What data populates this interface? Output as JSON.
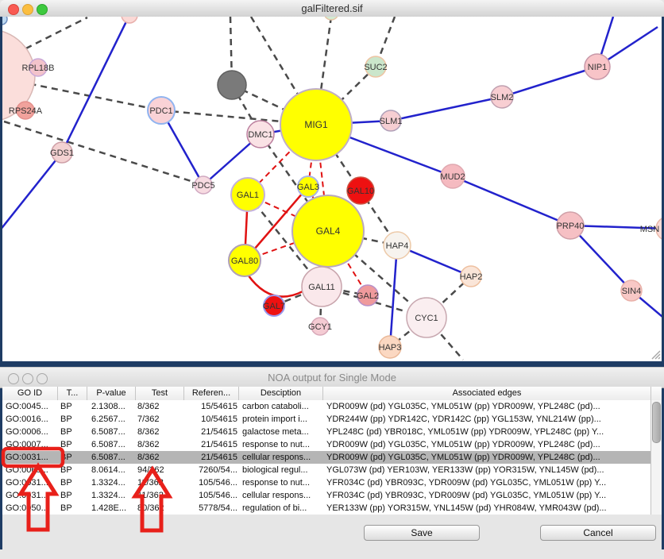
{
  "graph_window": {
    "title": "galFiltered.sif"
  },
  "graph": {
    "nodes": [
      {
        "label": "RPL18B"
      },
      {
        "label": "RPS24A"
      },
      {
        "label": "GDS1"
      },
      {
        "label": "PDC1"
      },
      {
        "label": "PDC5"
      },
      {
        "label": "MIG1"
      },
      {
        "label": "DMC1"
      },
      {
        "label": "SUC2"
      },
      {
        "label": "SLM1"
      },
      {
        "label": "SLM2"
      },
      {
        "label": "NIP1"
      },
      {
        "label": "MUD2"
      },
      {
        "label": "PRP40"
      },
      {
        "label": "SIN4"
      },
      {
        "label": "MSN"
      },
      {
        "label": "GAL1"
      },
      {
        "label": "GAL3"
      },
      {
        "label": "GAL10"
      },
      {
        "label": "GAL4"
      },
      {
        "label": "GAL80"
      },
      {
        "label": "GAL11"
      },
      {
        "label": "GAL2"
      },
      {
        "label": "GAL7"
      },
      {
        "label": "GCY1"
      },
      {
        "label": "HAP4"
      },
      {
        "label": "HAP2"
      },
      {
        "label": "HAP3"
      },
      {
        "label": "CYC1"
      }
    ],
    "colors": {
      "edge_blue": "#2222cc",
      "edge_red": "#e01212",
      "edge_dashed_gray": "#4a4a4a",
      "node_yellow": "#ffff00",
      "node_red": "#ee1111",
      "node_gray": "#7a7a7a",
      "node_green": "#cbe6cb",
      "node_pink": "#f6c8cc"
    }
  },
  "noa_window": {
    "title": "NOA output for Single Mode",
    "table": {
      "columns": [
        "GO ID",
        "T...",
        "P-value",
        "Test",
        "Referen...",
        "Desciption",
        "Associated edges"
      ],
      "selected_row_index": 4,
      "rows": [
        {
          "go_id": "GO:0045...",
          "type": "BP",
          "p_value": "2.1308...",
          "test": "8/362",
          "reference": "15/54615",
          "description": "carbon cataboli...",
          "associated_edges": "YDR009W (pd) YGL035C, YML051W (pp) YDR009W, YPL248C (pd)..."
        },
        {
          "go_id": "GO:0016...",
          "type": "BP",
          "p_value": "6.2567...",
          "test": "7/362",
          "reference": "10/54615",
          "description": "protein import i...",
          "associated_edges": "YDR244W (pp) YDR142C, YDR142C (pp) YGL153W, YNL214W (pp)..."
        },
        {
          "go_id": "GO:0006...",
          "type": "BP",
          "p_value": "6.5087...",
          "test": "8/362",
          "reference": "21/54615",
          "description": "galactose meta...",
          "associated_edges": "YPL248C (pd) YBR018C, YML051W (pp) YDR009W, YPL248C (pp) Y..."
        },
        {
          "go_id": "GO:0007...",
          "type": "BP",
          "p_value": "6.5087...",
          "test": "8/362",
          "reference": "21/54615",
          "description": "response to nut...",
          "associated_edges": "YDR009W (pd) YGL035C, YML051W (pp) YDR009W, YPL248C (pd)..."
        },
        {
          "go_id": "GO:0031...",
          "type": "BP",
          "p_value": "6.5087...",
          "test": "8/362",
          "reference": "21/54615",
          "description": "cellular respons...",
          "associated_edges": "YDR009W (pd) YGL035C, YML051W (pp) YDR009W, YPL248C (pd)..."
        },
        {
          "go_id": "GO:0065...",
          "type": "BP",
          "p_value": "8.0614...",
          "test": "94/362",
          "reference": "7260/54...",
          "description": "biological regul...",
          "associated_edges": "YGL073W (pd) YER103W, YER133W (pp) YOR315W, YNL145W (pd)..."
        },
        {
          "go_id": "GO:0031...",
          "type": "BP",
          "p_value": "1.3324...",
          "test": "11/362",
          "reference": "105/546...",
          "description": "response to nut...",
          "associated_edges": "YFR034C (pd) YBR093C, YDR009W (pd) YGL035C, YML051W (pp) Y..."
        },
        {
          "go_id": "GO:0031...",
          "type": "BP",
          "p_value": "1.3324...",
          "test": "11/362",
          "reference": "105/546...",
          "description": "cellular respons...",
          "associated_edges": "YFR034C (pd) YBR093C, YDR009W (pd) YGL035C, YML051W (pp) Y..."
        },
        {
          "go_id": "GO:0050...",
          "type": "BP",
          "p_value": "1.428E...",
          "test": "80/362",
          "reference": "5778/54...",
          "description": "regulation of bi...",
          "associated_edges": "YER133W (pp) YOR315W, YNL145W (pd) YHR084W, YMR043W (pd)..."
        }
      ]
    },
    "save_button": "Save",
    "cancel_button": "Cancel"
  },
  "annotations": {
    "color": "#e8201a",
    "marks": [
      "box around GO ID of selected row",
      "arrow to GO ID column",
      "arrow to Test column"
    ]
  }
}
